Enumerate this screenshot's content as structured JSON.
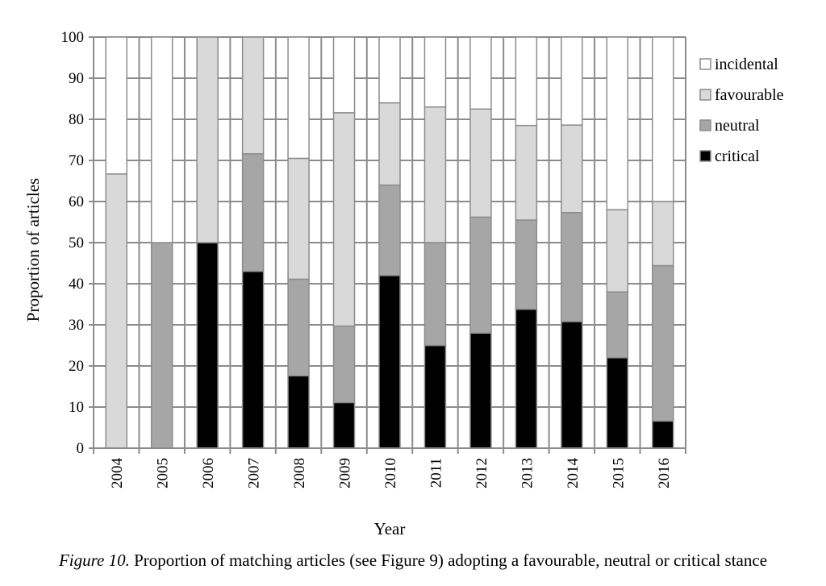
{
  "chart_data": {
    "type": "bar",
    "stacked": true,
    "xlabel": "Year",
    "ylabel": "Proportion of articles",
    "ylim": [
      0,
      100
    ],
    "yticks": [
      0,
      10,
      20,
      30,
      40,
      50,
      60,
      70,
      80,
      90,
      100
    ],
    "grid": true,
    "legend_position": "right",
    "categories": [
      "2004",
      "2005",
      "2006",
      "2007",
      "2008",
      "2009",
      "2010",
      "2011",
      "2012",
      "2013",
      "2014",
      "2015",
      "2016"
    ],
    "series": [
      {
        "name": "critical",
        "color": "#000000",
        "values": [
          0,
          0,
          50,
          43,
          17.6,
          11.1,
          42,
          25,
          28,
          33.8,
          30.8,
          22,
          6.6
        ]
      },
      {
        "name": "neutral",
        "color": "#a6a6a6",
        "values": [
          0,
          50,
          0,
          28.6,
          23.5,
          18.6,
          22,
          25,
          28.2,
          21.7,
          26.5,
          16,
          37.8
        ]
      },
      {
        "name": "favourable",
        "color": "#d9d9d9",
        "values": [
          66.7,
          0,
          50,
          28.4,
          29.4,
          51.9,
          20,
          33,
          26.3,
          23,
          21.3,
          20,
          15.6
        ]
      },
      {
        "name": "incidental",
        "color": "#ffffff",
        "values": [
          33.3,
          50,
          0,
          0,
          29.5,
          18.4,
          16,
          17,
          17.5,
          21.5,
          21.4,
          42,
          40
        ]
      }
    ]
  },
  "caption": {
    "figure_label": "Figure 10.",
    "text": " Proportion of matching articles (see Figure 9) adopting a favourable, neutral or critical stance"
  }
}
